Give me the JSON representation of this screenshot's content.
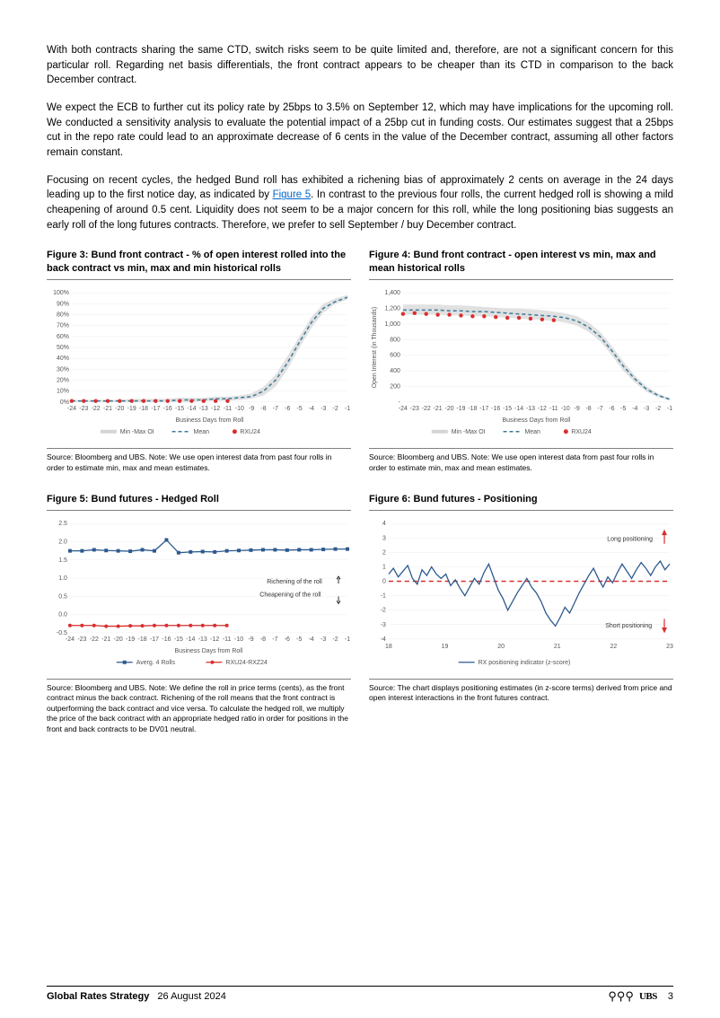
{
  "paragraphs": {
    "p1": "With both contracts sharing the same CTD, switch risks seem to be quite limited and, therefore, are not a significant concern for this particular roll. Regarding net basis differentials, the front contract appears to be cheaper than its CTD in comparison to the back December contract.",
    "p2": "We expect the ECB to further cut its policy rate by 25bps to 3.5% on September 12, which may have implications for the upcoming roll. We conducted a sensitivity analysis to evaluate the potential impact of a 25bp cut in funding costs. Our estimates suggest that a 25bps cut in the repo rate could lead to an approximate decrease of 6 cents in the value of the December contract, assuming all other factors remain constant.",
    "p3a": "Focusing on recent cycles, the hedged Bund roll has exhibited a richening bias of approximately 2 cents on average in the 24 days leading up to the first notice day, as indicated by ",
    "p3link": "Figure 5",
    "p3b": ". In contrast to the previous four rolls, the current hedged roll is showing a mild cheapening of around 0.5 cent. Liquidity does not seem to be a major concern for this roll, while the long positioning bias suggests an early roll of the long futures contracts. Therefore, we prefer to sell September / buy December contract."
  },
  "fig3": {
    "title": "Figure 3: Bund front contract - % of open interest rolled into the back contract vs min, max and min historical rolls",
    "type": "line-area",
    "xlabel": "Business Days from Roll",
    "x_ticks": [
      "-24",
      "-23",
      "-22",
      "-21",
      "-20",
      "-19",
      "-18",
      "-17",
      "-16",
      "-15",
      "-14",
      "-13",
      "-12",
      "-11",
      "-10",
      "-9",
      "-8",
      "-7",
      "-6",
      "-5",
      "-4",
      "-3",
      "-2",
      "-1"
    ],
    "y_ticks": [
      "0%",
      "10%",
      "20%",
      "30%",
      "40%",
      "50%",
      "60%",
      "70%",
      "80%",
      "90%",
      "100%"
    ],
    "ylim": [
      0,
      100
    ],
    "area_upper": [
      2,
      2,
      2,
      2,
      2,
      3,
      3,
      3,
      3,
      4,
      4,
      4,
      5,
      5,
      6,
      8,
      14,
      25,
      42,
      60,
      78,
      90,
      95,
      98
    ],
    "area_lower": [
      0,
      0,
      0,
      0,
      0,
      0,
      0,
      0,
      0,
      0,
      0,
      1,
      1,
      1,
      2,
      3,
      6,
      14,
      30,
      50,
      68,
      82,
      90,
      94
    ],
    "mean": [
      1,
      1,
      1,
      1,
      1,
      1,
      1,
      1,
      1,
      2,
      2,
      2,
      3,
      3,
      4,
      5,
      10,
      20,
      36,
      55,
      73,
      86,
      92,
      96
    ],
    "rxu24": [
      1,
      1,
      1,
      1,
      1,
      1,
      1,
      1,
      1,
      1,
      1,
      1,
      1,
      1
    ],
    "colors": {
      "area": "#d4d4d4",
      "mean": "#3a7a9a",
      "rxu": "#d92e2e",
      "bg": "#ffffff",
      "grid": "#eeeeee"
    },
    "legend": [
      "Min -Max OI",
      "Mean",
      "RXU24"
    ],
    "source": "Source: Bloomberg and UBS. Note: We use open interest data from past four rolls in order to estimate min, max and mean estimates."
  },
  "fig4": {
    "title": "Figure 4: Bund front contract - open interest vs min, max and mean historical rolls",
    "type": "line-area",
    "xlabel": "Business Days from Roll",
    "ylabel": "Open Interest (in Thousands)",
    "x_ticks": [
      "-24",
      "-23",
      "-22",
      "-21",
      "-20",
      "-19",
      "-18",
      "-17",
      "-16",
      "-15",
      "-14",
      "-13",
      "-12",
      "-11",
      "-10",
      "-9",
      "-8",
      "-7",
      "-6",
      "-5",
      "-4",
      "-3",
      "-2",
      "-1"
    ],
    "y_ticks": [
      "-",
      "200",
      "400",
      "600",
      "800",
      "1,000",
      "1,200",
      "1,400"
    ],
    "ylim": [
      0,
      1400
    ],
    "area_upper": [
      1250,
      1250,
      1250,
      1250,
      1240,
      1240,
      1230,
      1220,
      1210,
      1200,
      1200,
      1190,
      1180,
      1160,
      1140,
      1100,
      1020,
      900,
      720,
      520,
      340,
      200,
      110,
      50
    ],
    "area_lower": [
      1120,
      1120,
      1120,
      1120,
      1110,
      1110,
      1100,
      1100,
      1090,
      1080,
      1070,
      1060,
      1050,
      1040,
      1020,
      980,
      900,
      780,
      600,
      400,
      250,
      130,
      60,
      20
    ],
    "mean": [
      1180,
      1180,
      1180,
      1180,
      1170,
      1170,
      1160,
      1160,
      1150,
      1140,
      1130,
      1120,
      1110,
      1100,
      1080,
      1040,
      960,
      840,
      660,
      460,
      295,
      165,
      85,
      35
    ],
    "rxu24": [
      1130,
      1140,
      1130,
      1120,
      1120,
      1110,
      1100,
      1100,
      1090,
      1080,
      1080,
      1070,
      1060,
      1050
    ],
    "colors": {
      "area": "#d4d4d4",
      "mean": "#3a7a9a",
      "rxu": "#d92e2e",
      "bg": "#ffffff",
      "grid": "#eeeeee"
    },
    "legend": [
      "Min -Max OI",
      "Mean",
      "RXU24"
    ],
    "source": "Source: Bloomberg and UBS. Note: We use open interest data from past four rolls in order to estimate min, max and mean estimates."
  },
  "fig5": {
    "title": "Figure 5: Bund futures - Hedged Roll",
    "type": "line-marker",
    "xlabel": "Business Days from Roll",
    "x_ticks": [
      "-24",
      "-23",
      "-22",
      "-21",
      "-20",
      "-19",
      "-18",
      "-17",
      "-16",
      "-15",
      "-14",
      "-13",
      "-12",
      "-11",
      "-10",
      "-9",
      "-8",
      "-7",
      "-6",
      "-5",
      "-4",
      "-3",
      "-2",
      "-1"
    ],
    "y_ticks": [
      "-0.5",
      "0.0",
      "0.5",
      "1.0",
      "1.5",
      "2.0",
      "2.5"
    ],
    "ylim": [
      -0.5,
      2.5
    ],
    "avg4": [
      1.75,
      1.75,
      1.78,
      1.76,
      1.75,
      1.74,
      1.78,
      1.75,
      2.05,
      1.7,
      1.72,
      1.73,
      1.72,
      1.75,
      1.76,
      1.77,
      1.78,
      1.78,
      1.77,
      1.78,
      1.78,
      1.79,
      1.8,
      1.8
    ],
    "rxu_rxz": [
      -0.3,
      -0.3,
      -0.3,
      -0.32,
      -0.32,
      -0.31,
      -0.31,
      -0.3,
      -0.3,
      -0.3,
      -0.3,
      -0.3,
      -0.3,
      -0.3
    ],
    "colors": {
      "avg": "#2d5a8f",
      "rxu": "#d92e2e",
      "bg": "#ffffff",
      "grid": "#eeeeee"
    },
    "legend": [
      "Averg. 4 Rolls",
      "RXU24-RXZ24"
    ],
    "annot": {
      "rich": "Richening of the roll",
      "cheap": "Cheapening of the roll"
    },
    "source": "Source: Bloomberg and UBS. Note: We define the roll in price terms (cents), as the front contract minus the back contract. Richening of the roll means that the front contract is outperforming the back contract and vice versa. To calculate the hedged roll, we multiply the price of the back contract with an appropriate hedged ratio in order for positions in the front and back contracts to be DV01 neutral."
  },
  "fig6": {
    "title": "Figure 6: Bund futures - Positioning",
    "type": "line",
    "x_ticks": [
      "18",
      "19",
      "20",
      "21",
      "22",
      "23"
    ],
    "y_ticks": [
      "-4",
      "-3",
      "-2",
      "-1",
      "0",
      "1",
      "2",
      "3",
      "4"
    ],
    "ylim": [
      -4,
      4
    ],
    "series": [
      0.5,
      0.9,
      0.3,
      0.7,
      1.1,
      0.2,
      -0.2,
      0.8,
      0.4,
      1.0,
      0.5,
      0.2,
      0.5,
      -0.3,
      0.1,
      -0.5,
      -1.0,
      -0.4,
      0.2,
      -0.2,
      0.6,
      1.2,
      0.3,
      -0.6,
      -1.2,
      -2.0,
      -1.4,
      -0.8,
      -0.3,
      0.2,
      -0.4,
      -0.8,
      -1.4,
      -2.2,
      -2.7,
      -3.1,
      -2.5,
      -1.8,
      -2.2,
      -1.5,
      -0.8,
      -0.2,
      0.4,
      0.9,
      0.2,
      -0.4,
      0.3,
      -0.1,
      0.6,
      1.2,
      0.7,
      0.2,
      0.8,
      1.3,
      0.9,
      0.4,
      1.0,
      1.4,
      0.8,
      1.2
    ],
    "zero_color": "#d92e2e",
    "line_color": "#2d5a8f",
    "colors": {
      "bg": "#ffffff",
      "grid": "#eeeeee"
    },
    "legend": [
      "RX positioning indicator (z-score)"
    ],
    "annot": {
      "long": "Long positioning",
      "short": "Short positioning"
    },
    "source": "Source: The chart displays positioning estimates (in z-score terms) derived from price and open interest interactions in the front futures contract."
  },
  "footer": {
    "title": "Global Rates Strategy",
    "date": "26 August 2024",
    "brand": "UBS",
    "page": "3"
  }
}
